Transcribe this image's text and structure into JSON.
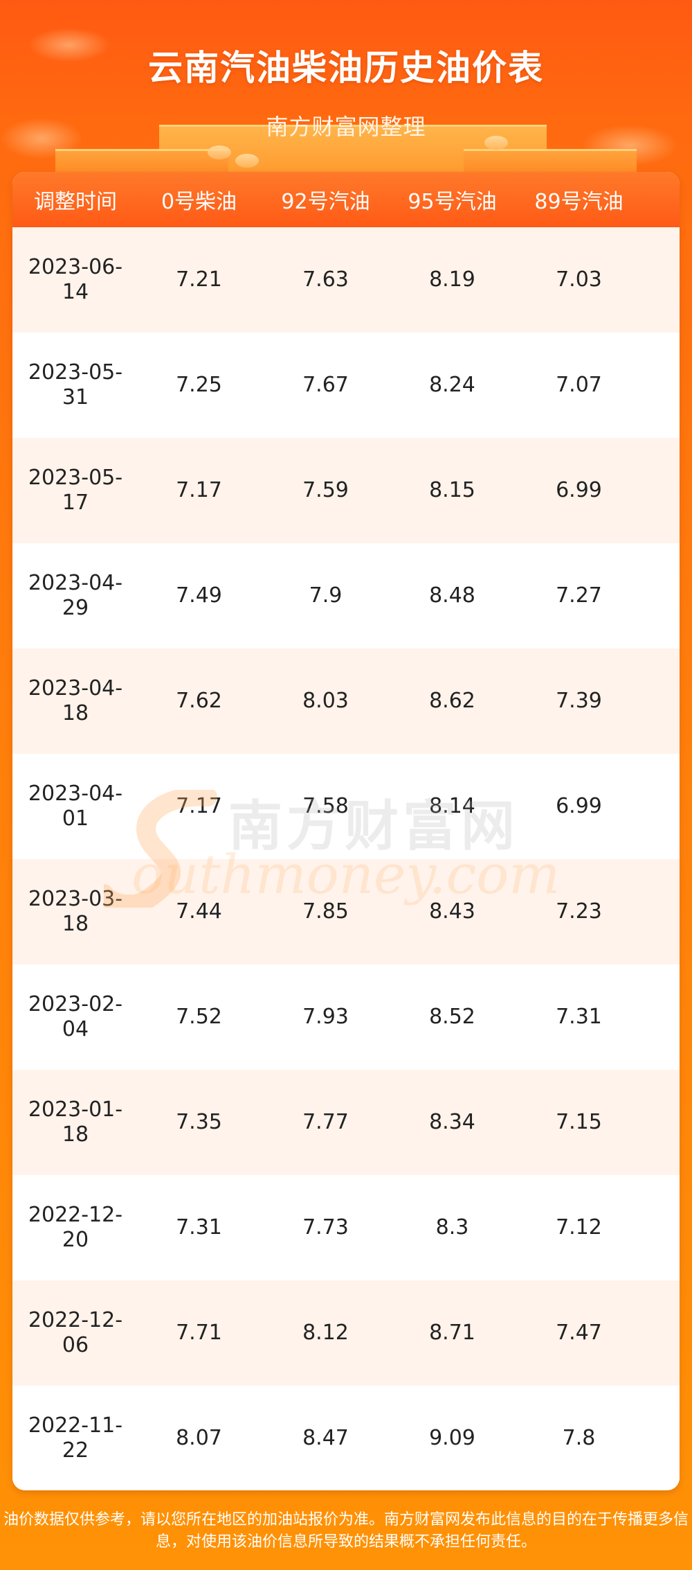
{
  "header": {
    "title": "云南汽油柴油历史油价表",
    "subtitle": "南方财富网整理"
  },
  "table": {
    "columns": [
      "调整时间",
      "0号柴油",
      "92号汽油",
      "95号汽油",
      "89号汽油"
    ],
    "rows": [
      [
        "2023-06-14",
        "7.21",
        "7.63",
        "8.19",
        "7.03"
      ],
      [
        "2023-05-31",
        "7.25",
        "7.67",
        "8.24",
        "7.07"
      ],
      [
        "2023-05-17",
        "7.17",
        "7.59",
        "8.15",
        "6.99"
      ],
      [
        "2023-04-29",
        "7.49",
        "7.9",
        "8.48",
        "7.27"
      ],
      [
        "2023-04-18",
        "7.62",
        "8.03",
        "8.62",
        "7.39"
      ],
      [
        "2023-04-01",
        "7.17",
        "7.58",
        "8.14",
        "6.99"
      ],
      [
        "2023-03-18",
        "7.44",
        "7.85",
        "8.43",
        "7.23"
      ],
      [
        "2023-02-04",
        "7.52",
        "7.93",
        "8.52",
        "7.31"
      ],
      [
        "2023-01-18",
        "7.35",
        "7.77",
        "8.34",
        "7.15"
      ],
      [
        "2022-12-20",
        "7.31",
        "7.73",
        "8.3",
        "7.12"
      ],
      [
        "2022-12-06",
        "7.71",
        "8.12",
        "8.71",
        "7.47"
      ],
      [
        "2022-11-22",
        "8.07",
        "8.47",
        "9.09",
        "7.8"
      ]
    ]
  },
  "watermark": {
    "cn": "南方财富网",
    "en": "outhmoney.com"
  },
  "footer": {
    "line1": "油价数据仅供参考，请以您所在地区的加油站报价为准。南方财富网发布此信息的目的在于传播更多信",
    "line2": "息，对使用该油价信息所导致的结果概不承担任何责任。"
  },
  "colors": {
    "header_bg": "#ff5a16",
    "row_alt_bg": "#fff3eb",
    "page_bg": "#ff7c0c"
  }
}
